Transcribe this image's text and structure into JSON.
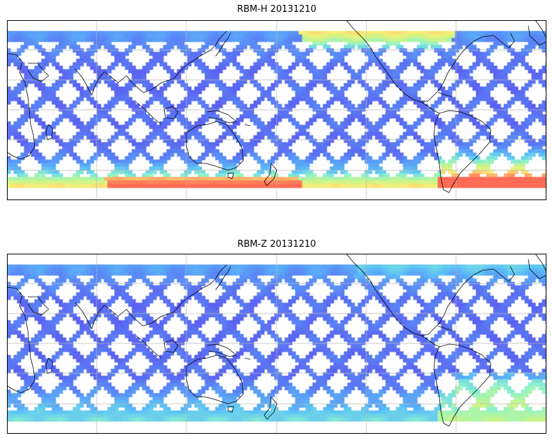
{
  "panels": [
    {
      "title": "RBM-H 20131210",
      "variant": "H"
    },
    {
      "title": "RBM-Z 20131210",
      "variant": "Z"
    }
  ],
  "colormap": [
    "#5b5ef0",
    "#5a8ef7",
    "#5cc2f7",
    "#8ef2cc",
    "#c8f58a",
    "#f6ef78",
    "#ffb66a",
    "#ff6b55"
  ]
}
